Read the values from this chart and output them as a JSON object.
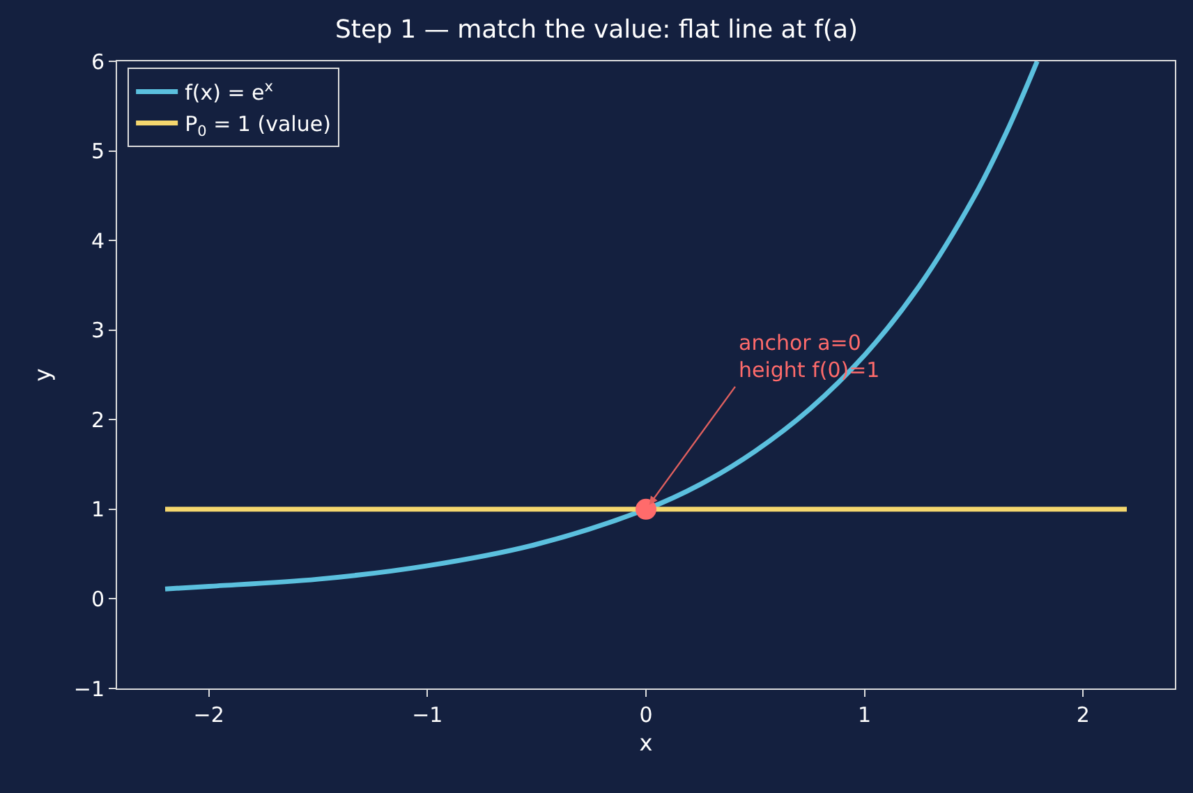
{
  "chart_data": {
    "type": "line",
    "title": "Step 1 — match the value: flat line at f(a)",
    "xlabel": "x",
    "ylabel": "y",
    "xlim": [
      -2.42,
      2.42
    ],
    "ylim": [
      -1,
      6
    ],
    "xticks": [
      {
        "value": -2,
        "label": "−2"
      },
      {
        "value": -1,
        "label": "−1"
      },
      0,
      1,
      2
    ],
    "yticks": [
      {
        "value": -1,
        "label": "−1"
      },
      0,
      1,
      2,
      3,
      4,
      5,
      6
    ],
    "grid": false,
    "legend": "top left",
    "line_style": "solid",
    "series": [
      {
        "name": "f(x) = e$^{x}$",
        "color": "#5bc0de",
        "x": [
          -2.2,
          -2,
          -1.5,
          -1,
          -0.5,
          0,
          0.25,
          0.5,
          0.75,
          1,
          1.25,
          1.5,
          1.65,
          1.79
        ],
        "values": [
          0.11,
          0.14,
          0.22,
          0.37,
          0.61,
          1,
          1.28,
          1.65,
          2.12,
          2.72,
          3.49,
          4.48,
          5.21,
          6.0
        ]
      },
      {
        "name": "P$_{0}$ = 1 (value)",
        "color": "#f5d76e",
        "x": [
          -2.2,
          2.2
        ],
        "values": [
          1,
          1
        ]
      },
      {
        "type": "scatter",
        "marker": "circle",
        "color": "#ff6b6b",
        "x": [
          0
        ],
        "values": [
          1
        ]
      }
    ],
    "annotations": [
      {
        "text": "anchor a=0\nheight f(0)=1",
        "x": 0,
        "y": 1
      }
    ]
  }
}
